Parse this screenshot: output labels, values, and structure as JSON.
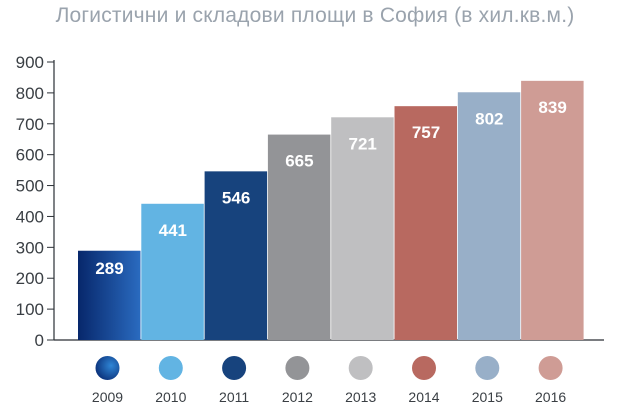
{
  "chart_data": {
    "type": "bar",
    "title": "Логистични и складови площи в София (в хил.кв.м.)",
    "xlabel": "",
    "ylabel": "",
    "categories": [
      "2009",
      "2010",
      "2011",
      "2012",
      "2013",
      "2014",
      "2015",
      "2016"
    ],
    "values": [
      289,
      441,
      546,
      665,
      721,
      757,
      802,
      839
    ],
    "ylim": [
      0,
      900
    ],
    "yticks": [
      "0",
      "100",
      "200",
      "300",
      "400",
      "500",
      "600",
      "700",
      "800",
      "900"
    ],
    "grid": false,
    "legend": "bottom",
    "colors": [
      "#0a3f86",
      "#62b4e3",
      "#17437d",
      "#939497",
      "#bfbfc1",
      "#b86960",
      "#98afc8",
      "#cf9c95"
    ]
  }
}
